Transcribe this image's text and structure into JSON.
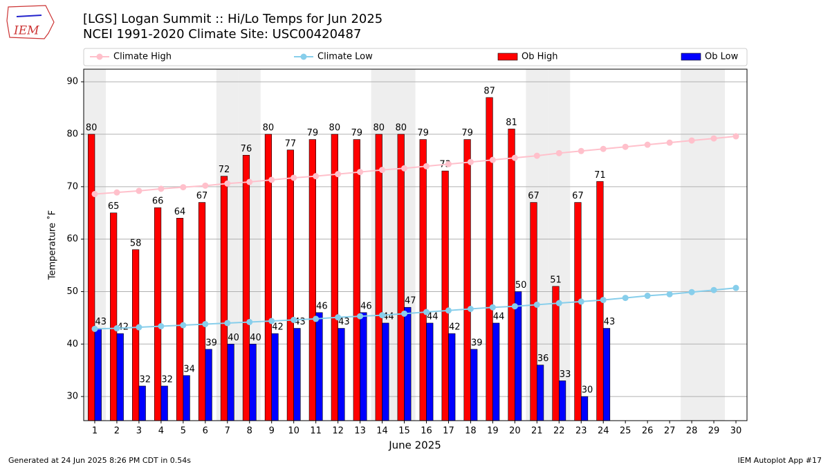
{
  "logo": "IEM",
  "footer_left": "Generated at 24 Jun 2025 8:26 PM CDT in 0.54s",
  "footer_right": "IEM Autoplot App #17",
  "chart_data": {
    "type": "bar",
    "title": "[LGS] Logan Summit  :: Hi/Lo Temps for Jun 2025",
    "subtitle": "NCEI 1991-2020 Climate Site: USC00420487",
    "xlabel": "June 2025",
    "ylabel": "Temperature ˚F",
    "x": [
      1,
      2,
      3,
      4,
      5,
      6,
      7,
      8,
      9,
      10,
      11,
      12,
      13,
      14,
      15,
      16,
      17,
      18,
      19,
      20,
      21,
      22,
      23,
      24,
      25,
      26,
      27,
      28,
      29,
      30
    ],
    "xlim": [
      0.5,
      30.5
    ],
    "xticks": [
      1,
      2,
      3,
      4,
      5,
      6,
      7,
      8,
      9,
      10,
      11,
      12,
      13,
      14,
      15,
      16,
      17,
      18,
      19,
      20,
      21,
      22,
      23,
      24,
      25,
      26,
      27,
      28,
      29,
      30
    ],
    "ylim": [
      25.4,
      92.4
    ],
    "yticks": [
      30,
      40,
      50,
      60,
      70,
      80,
      90
    ],
    "grid": true,
    "shaded_days": [
      1,
      7,
      8,
      14,
      15,
      21,
      22,
      28,
      29
    ],
    "series": [
      {
        "name": "Climate High",
        "kind": "line",
        "color": "#ffc0cb",
        "values": [
          68.6,
          68.9,
          69.2,
          69.6,
          69.9,
          70.2,
          70.6,
          70.9,
          71.3,
          71.7,
          72.0,
          72.4,
          72.8,
          73.2,
          73.5,
          73.9,
          74.3,
          74.7,
          75.1,
          75.5,
          75.9,
          76.4,
          76.8,
          77.2,
          77.6,
          78.0,
          78.4,
          78.8,
          79.2,
          79.6
        ]
      },
      {
        "name": "Climate Low",
        "kind": "line",
        "color": "#87ceeb",
        "values": [
          42.9,
          43.0,
          43.2,
          43.4,
          43.6,
          43.8,
          44.0,
          44.2,
          44.4,
          44.6,
          44.8,
          45.1,
          45.3,
          45.5,
          45.8,
          46.1,
          46.4,
          46.7,
          47.0,
          47.2,
          47.5,
          47.8,
          48.1,
          48.4,
          48.8,
          49.2,
          49.5,
          49.9,
          50.3,
          50.7
        ]
      },
      {
        "name": "Ob High",
        "kind": "bar",
        "color": "#ff0000",
        "values": [
          80,
          65,
          58,
          66,
          64,
          67,
          72,
          76,
          80,
          77,
          79,
          80,
          79,
          80,
          80,
          79,
          73,
          79,
          87,
          81,
          67,
          51,
          67,
          71,
          null,
          null,
          null,
          null,
          null,
          null
        ]
      },
      {
        "name": "Ob Low",
        "kind": "bar",
        "color": "#0000ff",
        "values": [
          43,
          42,
          32,
          32,
          34,
          39,
          40,
          40,
          42,
          43,
          46,
          43,
          46,
          44,
          47,
          44,
          42,
          39,
          44,
          50,
          36,
          33,
          30,
          43,
          null,
          null,
          null,
          null,
          null,
          null
        ]
      }
    ]
  }
}
